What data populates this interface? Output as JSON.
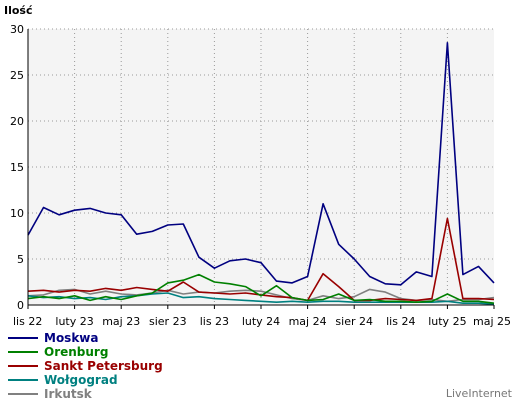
{
  "chart_data": {
    "type": "line",
    "ylabel": "Ilość",
    "xlabel": "",
    "ylim": [
      0,
      30
    ],
    "yticks": [
      0,
      5,
      10,
      15,
      20,
      25,
      30
    ],
    "grid": true,
    "legend_position": "bottom-left",
    "x_tick_labels": [
      "lis 22",
      "luty 23",
      "maj 23",
      "sier 23",
      "lis 23",
      "luty 24",
      "maj 24",
      "sier 24",
      "lis 24",
      "luty 25",
      "maj 25"
    ],
    "series": [
      {
        "name": "Moskwa",
        "color": "#000080",
        "values": [
          7.6,
          10.6,
          9.8,
          10.3,
          10.5,
          10.0,
          9.8,
          7.7,
          8.0,
          8.7,
          8.8,
          5.2,
          4.0,
          4.8,
          5.0,
          4.6,
          2.6,
          2.4,
          3.1,
          11.0,
          6.6,
          5.0,
          3.1,
          2.3,
          2.2,
          3.6,
          3.1,
          28.5,
          3.3,
          4.2,
          2.4
        ]
      },
      {
        "name": "Orenburg",
        "color": "#008000",
        "values": [
          0.7,
          0.9,
          0.7,
          1.0,
          0.5,
          0.9,
          0.6,
          1.0,
          1.3,
          2.4,
          2.7,
          3.3,
          2.5,
          2.3,
          2.0,
          1.0,
          2.1,
          0.8,
          0.5,
          0.6,
          1.2,
          0.5,
          0.6,
          0.4,
          0.4,
          0.3,
          0.4,
          1.2,
          0.4,
          0.4,
          0.2
        ]
      },
      {
        "name": "Sankt Petersburg",
        "color": "#990000",
        "values": [
          1.5,
          1.6,
          1.4,
          1.6,
          1.5,
          1.8,
          1.6,
          1.9,
          1.7,
          1.5,
          2.5,
          1.4,
          1.3,
          1.2,
          1.3,
          1.1,
          0.9,
          0.8,
          0.5,
          3.4,
          2.0,
          0.5,
          0.5,
          0.7,
          0.6,
          0.5,
          0.7,
          9.4,
          0.7,
          0.7,
          0.6
        ]
      },
      {
        "name": "Wołgograd",
        "color": "#008080",
        "values": [
          1.0,
          0.8,
          0.9,
          0.7,
          0.8,
          0.6,
          0.9,
          1.0,
          1.2,
          1.3,
          0.8,
          0.9,
          0.7,
          0.6,
          0.5,
          0.4,
          0.3,
          0.4,
          0.3,
          0.4,
          0.4,
          0.3,
          0.3,
          0.3,
          0.3,
          0.3,
          0.3,
          0.4,
          0.2,
          0.2,
          0.1
        ]
      },
      {
        "name": "Irkutsk",
        "color": "#808080",
        "values": [
          1.0,
          1.1,
          1.6,
          1.7,
          1.2,
          1.5,
          1.2,
          1.1,
          1.3,
          1.6,
          1.2,
          1.4,
          1.3,
          1.5,
          1.6,
          1.5,
          1.1,
          0.7,
          0.5,
          1.0,
          0.7,
          0.9,
          1.7,
          1.4,
          0.7,
          0.5,
          0.6,
          0.4,
          0.6,
          0.6,
          0.8
        ]
      }
    ]
  },
  "credit": "LiveInternet"
}
